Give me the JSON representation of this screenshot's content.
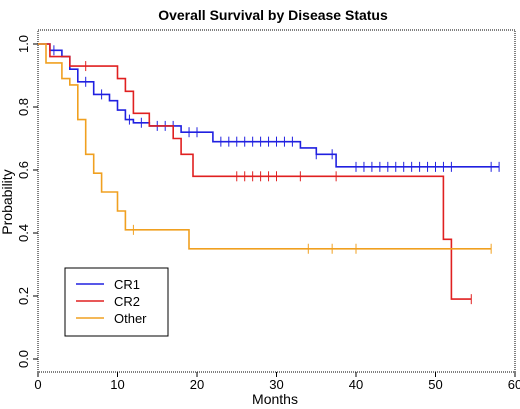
{
  "chart_data": {
    "type": "line",
    "step": true,
    "title": "Overall Survival by Disease Status",
    "xlabel": "Months",
    "ylabel": "Probability",
    "xlim": [
      0,
      60
    ],
    "ylim": [
      0,
      1.0
    ],
    "xticks": [
      "0",
      "10",
      "20",
      "30",
      "40",
      "50",
      "60"
    ],
    "yticks": [
      "0.0",
      "0.2",
      "0.4",
      "0.6",
      "0.8",
      "1.0"
    ],
    "grid": false,
    "legend_position": "bottom-left",
    "series": [
      {
        "name": "CR1",
        "color": "#2020e0",
        "points": [
          [
            0,
            1.0
          ],
          [
            1.5,
            1.0
          ],
          [
            1.5,
            0.98
          ],
          [
            3,
            0.98
          ],
          [
            3,
            0.96
          ],
          [
            4,
            0.96
          ],
          [
            4,
            0.92
          ],
          [
            5,
            0.92
          ],
          [
            5,
            0.88
          ],
          [
            7,
            0.88
          ],
          [
            7,
            0.84
          ],
          [
            9,
            0.84
          ],
          [
            9,
            0.82
          ],
          [
            10,
            0.82
          ],
          [
            10,
            0.79
          ],
          [
            11,
            0.79
          ],
          [
            11,
            0.76
          ],
          [
            12,
            0.76
          ],
          [
            12,
            0.75
          ],
          [
            14,
            0.75
          ],
          [
            14,
            0.74
          ],
          [
            18,
            0.74
          ],
          [
            18,
            0.72
          ],
          [
            22,
            0.72
          ],
          [
            22,
            0.69
          ],
          [
            33,
            0.69
          ],
          [
            33,
            0.67
          ],
          [
            35,
            0.67
          ],
          [
            35,
            0.65
          ],
          [
            37.5,
            0.65
          ],
          [
            37.5,
            0.61
          ],
          [
            58,
            0.61
          ]
        ],
        "censor_x": [
          2,
          6,
          8,
          11.5,
          13,
          15,
          16,
          17,
          19,
          20,
          23,
          24,
          25,
          26,
          27,
          28,
          29,
          30,
          31,
          32,
          35,
          37,
          40,
          41,
          42,
          43,
          44,
          45,
          46,
          47,
          48,
          49,
          50,
          51,
          52,
          57,
          58
        ]
      },
      {
        "name": "CR2",
        "color": "#e02020",
        "points": [
          [
            0,
            1.0
          ],
          [
            1.5,
            1.0
          ],
          [
            1.5,
            0.96
          ],
          [
            4,
            0.96
          ],
          [
            4,
            0.93
          ],
          [
            10,
            0.93
          ],
          [
            10,
            0.89
          ],
          [
            11,
            0.89
          ],
          [
            11,
            0.85
          ],
          [
            12,
            0.85
          ],
          [
            12,
            0.78
          ],
          [
            14,
            0.78
          ],
          [
            14,
            0.74
          ],
          [
            17,
            0.74
          ],
          [
            17,
            0.7
          ],
          [
            18,
            0.7
          ],
          [
            18,
            0.65
          ],
          [
            19.5,
            0.65
          ],
          [
            19.5,
            0.58
          ],
          [
            51,
            0.58
          ],
          [
            51,
            0.38
          ],
          [
            52,
            0.38
          ],
          [
            52,
            0.19
          ],
          [
            54.5,
            0.19
          ]
        ],
        "censor_x": [
          6,
          25,
          26,
          27,
          28,
          29,
          30,
          33,
          37.5,
          54.5
        ]
      },
      {
        "name": "Other",
        "color": "#f0a020",
        "points": [
          [
            0,
            1.0
          ],
          [
            1,
            1.0
          ],
          [
            1,
            0.94
          ],
          [
            3,
            0.94
          ],
          [
            3,
            0.89
          ],
          [
            4,
            0.89
          ],
          [
            4,
            0.87
          ],
          [
            5,
            0.87
          ],
          [
            5,
            0.76
          ],
          [
            6,
            0.76
          ],
          [
            6,
            0.65
          ],
          [
            7,
            0.65
          ],
          [
            7,
            0.59
          ],
          [
            8,
            0.59
          ],
          [
            8,
            0.53
          ],
          [
            10,
            0.53
          ],
          [
            10,
            0.47
          ],
          [
            11,
            0.47
          ],
          [
            11,
            0.41
          ],
          [
            19,
            0.41
          ],
          [
            19,
            0.35
          ],
          [
            57,
            0.35
          ]
        ],
        "censor_x": [
          12,
          34,
          37,
          40,
          57
        ]
      }
    ]
  }
}
